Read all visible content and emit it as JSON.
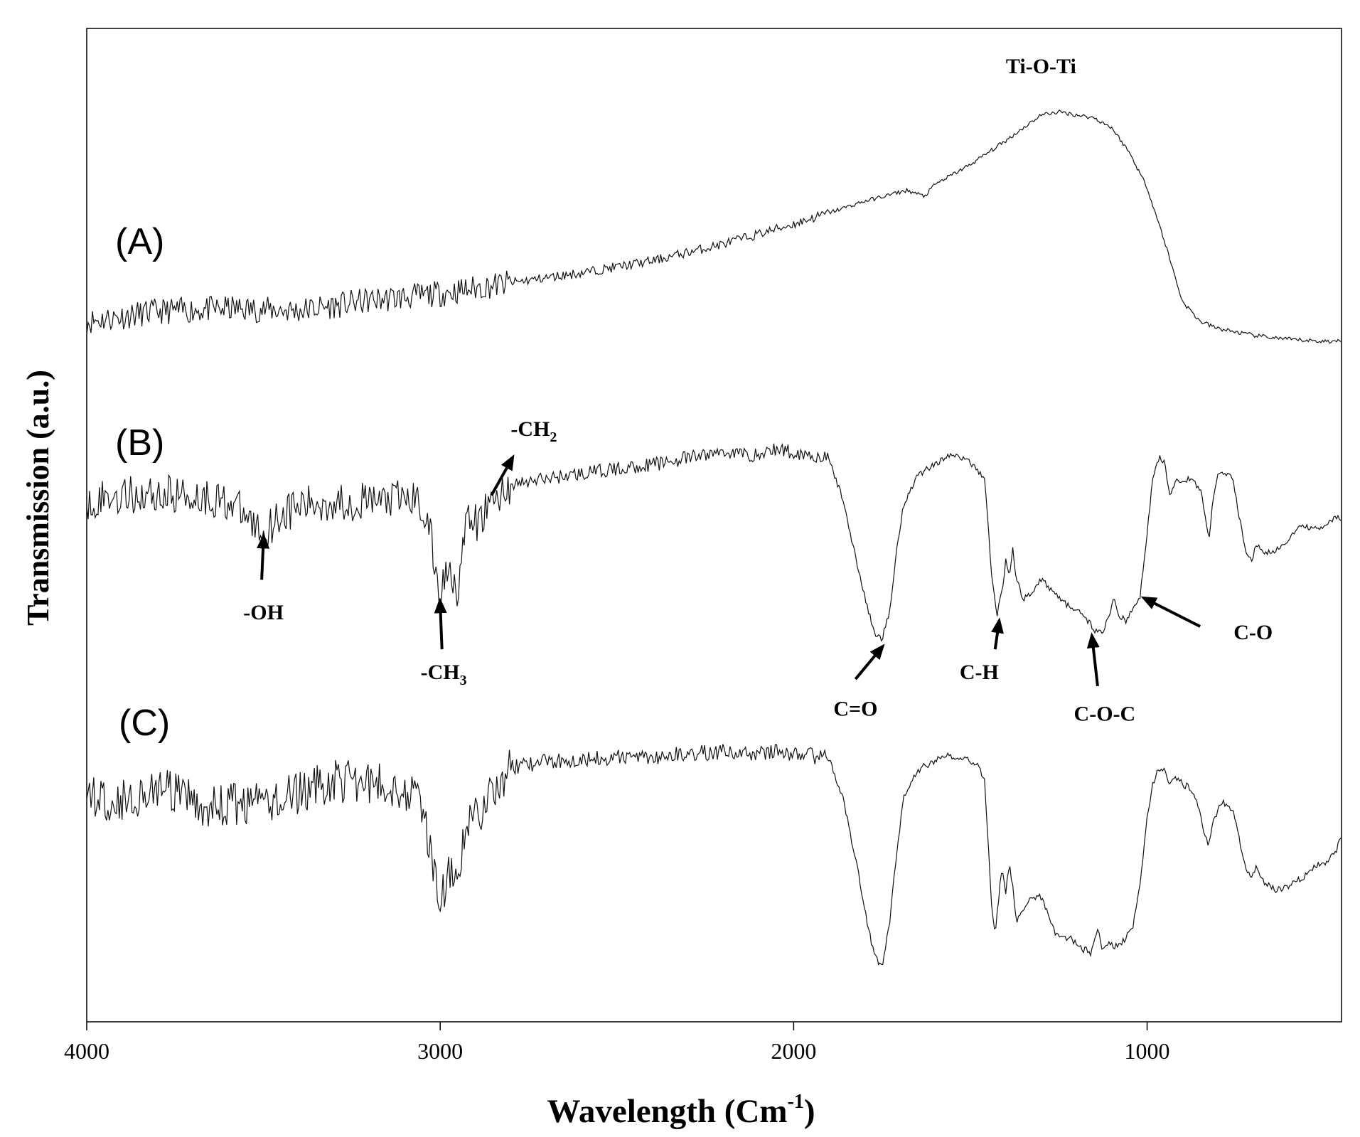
{
  "chart_data": {
    "type": "line",
    "title": "",
    "xlabel": "Wavelength (Cm",
    "xlabel_sup": "-1",
    "xlabel_close": ")",
    "ylabel": "Transmission (a.u.)",
    "xlim": [
      4000,
      450
    ],
    "x_reversed": true,
    "ylim": [
      0,
      100
    ],
    "y_ticks_shown": false,
    "grid": false,
    "x_ticks": [
      {
        "value": 4000,
        "label": "4000"
      },
      {
        "value": 3000,
        "label": "3000"
      },
      {
        "value": 2000,
        "label": "2000"
      },
      {
        "value": 1000,
        "label": "1000"
      }
    ],
    "series": [
      {
        "name": "(A)",
        "noise": 0.6,
        "points": [
          [
            4000,
            70.5
          ],
          [
            3800,
            71.5
          ],
          [
            3600,
            71.8
          ],
          [
            3400,
            71.6
          ],
          [
            3200,
            72.6
          ],
          [
            3000,
            73.3
          ],
          [
            2800,
            74.4
          ],
          [
            2600,
            75.4
          ],
          [
            2400,
            76.6
          ],
          [
            2200,
            78.3
          ],
          [
            2000,
            80.3
          ],
          [
            1800,
            82.6
          ],
          [
            1680,
            83.7
          ],
          [
            1630,
            83.1
          ],
          [
            1600,
            84.3
          ],
          [
            1500,
            86.3
          ],
          [
            1400,
            88.7
          ],
          [
            1300,
            91.3
          ],
          [
            1250,
            91.6
          ],
          [
            1150,
            91.0
          ],
          [
            1100,
            90.0
          ],
          [
            1050,
            87.5
          ],
          [
            1000,
            84.0
          ],
          [
            950,
            78.5
          ],
          [
            900,
            72.5
          ],
          [
            850,
            70.5
          ],
          [
            800,
            69.8
          ],
          [
            700,
            69.1
          ],
          [
            600,
            68.7
          ],
          [
            500,
            68.5
          ],
          [
            450,
            68.5
          ]
        ]
      },
      {
        "name": "(B)",
        "noise": 0.9,
        "points": [
          [
            4000,
            52.5
          ],
          [
            3900,
            53.0
          ],
          [
            3800,
            53.1
          ],
          [
            3700,
            53.0
          ],
          [
            3600,
            52.4
          ],
          [
            3550,
            50.9
          ],
          [
            3500,
            49.1
          ],
          [
            3460,
            50.9
          ],
          [
            3400,
            51.9
          ],
          [
            3300,
            52.3
          ],
          [
            3200,
            52.4
          ],
          [
            3100,
            52.6
          ],
          [
            3060,
            52.5
          ],
          [
            3030,
            49.5
          ],
          [
            3010,
            44.5
          ],
          [
            3000,
            43.0
          ],
          [
            2990,
            44.5
          ],
          [
            2975,
            46.0
          ],
          [
            2960,
            44.5
          ],
          [
            2950,
            43.5
          ],
          [
            2935,
            48.0
          ],
          [
            2920,
            50.5
          ],
          [
            2890,
            50.0
          ],
          [
            2870,
            51.8
          ],
          [
            2800,
            54.0
          ],
          [
            2700,
            54.7
          ],
          [
            2600,
            55.2
          ],
          [
            2400,
            56.1
          ],
          [
            2200,
            57.4
          ],
          [
            2100,
            57.0
          ],
          [
            2050,
            57.7
          ],
          [
            2000,
            57.3
          ],
          [
            1950,
            57.1
          ],
          [
            1900,
            56.6
          ],
          [
            1860,
            52.5
          ],
          [
            1820,
            46.0
          ],
          [
            1790,
            41.5
          ],
          [
            1770,
            39.0
          ],
          [
            1750,
            38.6
          ],
          [
            1730,
            41.0
          ],
          [
            1710,
            47.0
          ],
          [
            1690,
            52.0
          ],
          [
            1650,
            55.0
          ],
          [
            1600,
            56.2
          ],
          [
            1560,
            57.0
          ],
          [
            1520,
            56.8
          ],
          [
            1480,
            55.6
          ],
          [
            1460,
            54.7
          ],
          [
            1450,
            50.0
          ],
          [
            1440,
            45.0
          ],
          [
            1425,
            40.9
          ],
          [
            1410,
            43.5
          ],
          [
            1400,
            46.5
          ],
          [
            1390,
            45.0
          ],
          [
            1380,
            47.5
          ],
          [
            1370,
            44.5
          ],
          [
            1350,
            42.5
          ],
          [
            1330,
            43.2
          ],
          [
            1300,
            44.5
          ],
          [
            1250,
            42.8
          ],
          [
            1210,
            41.4
          ],
          [
            1180,
            41.0
          ],
          [
            1150,
            39.5
          ],
          [
            1130,
            39.1
          ],
          [
            1110,
            40.5
          ],
          [
            1095,
            42.5
          ],
          [
            1080,
            41.0
          ],
          [
            1060,
            40.3
          ],
          [
            1040,
            41.5
          ],
          [
            1020,
            42.9
          ],
          [
            1000,
            49.0
          ],
          [
            985,
            54.5
          ],
          [
            965,
            57.0
          ],
          [
            950,
            56.1
          ],
          [
            935,
            53.0
          ],
          [
            920,
            54.5
          ],
          [
            880,
            54.6
          ],
          [
            850,
            53.7
          ],
          [
            835,
            51.0
          ],
          [
            825,
            48.5
          ],
          [
            815,
            52.0
          ],
          [
            800,
            54.9
          ],
          [
            780,
            55.3
          ],
          [
            760,
            55.0
          ],
          [
            740,
            51.0
          ],
          [
            720,
            47.0
          ],
          [
            705,
            46.5
          ],
          [
            690,
            48.0
          ],
          [
            680,
            47.6
          ],
          [
            660,
            47.2
          ],
          [
            640,
            47.2
          ],
          [
            600,
            48.6
          ],
          [
            560,
            50.0
          ],
          [
            520,
            49.5
          ],
          [
            490,
            50.0
          ],
          [
            470,
            50.9
          ],
          [
            450,
            50.5
          ]
        ]
      },
      {
        "name": "(C)",
        "noise": 1.0,
        "points": [
          [
            4000,
            22.7
          ],
          [
            3900,
            22.3
          ],
          [
            3800,
            23.5
          ],
          [
            3700,
            22.2
          ],
          [
            3650,
            21.5
          ],
          [
            3600,
            21.8
          ],
          [
            3500,
            22.0
          ],
          [
            3400,
            23.0
          ],
          [
            3300,
            24.3
          ],
          [
            3200,
            24.1
          ],
          [
            3100,
            23.4
          ],
          [
            3060,
            22.5
          ],
          [
            3030,
            18.0
          ],
          [
            3010,
            13.5
          ],
          [
            3000,
            12.3
          ],
          [
            2990,
            13.5
          ],
          [
            2975,
            15.0
          ],
          [
            2960,
            13.5
          ],
          [
            2950,
            13.0
          ],
          [
            2935,
            17.5
          ],
          [
            2920,
            20.5
          ],
          [
            2890,
            21.0
          ],
          [
            2870,
            22.5
          ],
          [
            2800,
            25.6
          ],
          [
            2700,
            26.2
          ],
          [
            2600,
            26.5
          ],
          [
            2400,
            26.7
          ],
          [
            2200,
            27.2
          ],
          [
            2100,
            26.9
          ],
          [
            2050,
            27.3
          ],
          [
            2000,
            26.9
          ],
          [
            1950,
            26.8
          ],
          [
            1900,
            26.5
          ],
          [
            1860,
            22.5
          ],
          [
            1820,
            15.5
          ],
          [
            1790,
            9.5
          ],
          [
            1770,
            6.5
          ],
          [
            1750,
            5.7
          ],
          [
            1730,
            9.5
          ],
          [
            1710,
            16.5
          ],
          [
            1690,
            22.5
          ],
          [
            1650,
            25.3
          ],
          [
            1600,
            26.3
          ],
          [
            1560,
            26.8
          ],
          [
            1520,
            26.6
          ],
          [
            1480,
            25.8
          ],
          [
            1460,
            24.5
          ],
          [
            1450,
            18.0
          ],
          [
            1440,
            12.0
          ],
          [
            1430,
            8.6
          ],
          [
            1420,
            12.5
          ],
          [
            1410,
            15.5
          ],
          [
            1400,
            13.0
          ],
          [
            1390,
            16.0
          ],
          [
            1380,
            13.5
          ],
          [
            1370,
            10.2
          ],
          [
            1350,
            11.5
          ],
          [
            1330,
            12.5
          ],
          [
            1300,
            12.6
          ],
          [
            1280,
            11.0
          ],
          [
            1260,
            8.7
          ],
          [
            1240,
            8.3
          ],
          [
            1220,
            8.6
          ],
          [
            1200,
            7.8
          ],
          [
            1180,
            7.3
          ],
          [
            1160,
            7.0
          ],
          [
            1150,
            8.0
          ],
          [
            1140,
            9.5
          ],
          [
            1130,
            7.5
          ],
          [
            1110,
            7.8
          ],
          [
            1090,
            7.5
          ],
          [
            1070,
            8.0
          ],
          [
            1040,
            9.5
          ],
          [
            1020,
            14.0
          ],
          [
            1000,
            20.5
          ],
          [
            985,
            24.0
          ],
          [
            965,
            25.5
          ],
          [
            950,
            25.3
          ],
          [
            935,
            24.0
          ],
          [
            920,
            24.5
          ],
          [
            880,
            23.5
          ],
          [
            850,
            21.3
          ],
          [
            835,
            18.5
          ],
          [
            825,
            17.7
          ],
          [
            815,
            20.0
          ],
          [
            800,
            21.3
          ],
          [
            785,
            22.1
          ],
          [
            760,
            21.5
          ],
          [
            740,
            18.5
          ],
          [
            720,
            15.5
          ],
          [
            705,
            14.6
          ],
          [
            690,
            15.5
          ],
          [
            680,
            14.3
          ],
          [
            660,
            13.8
          ],
          [
            640,
            13.3
          ],
          [
            600,
            13.7
          ],
          [
            560,
            14.5
          ],
          [
            520,
            15.7
          ],
          [
            490,
            16.2
          ],
          [
            465,
            17.0
          ],
          [
            450,
            19.0
          ]
        ]
      }
    ],
    "series_labels": [
      {
        "series": "(A)",
        "text": "(A)"
      },
      {
        "series": "(B)",
        "text": "(B)"
      },
      {
        "series": "(C)",
        "text": "(C)"
      }
    ],
    "annotations": [
      {
        "text": "Ti-O-Ti",
        "x": 1300,
        "y": 95.5,
        "arrow": false
      },
      {
        "text": "-OH",
        "sub": "",
        "x": 3500,
        "y": 40.5,
        "arrow": true,
        "arrow_from": [
          3505,
          44.5
        ],
        "arrow_to": [
          3500,
          48.5
        ]
      },
      {
        "text": "-CH",
        "sub": "3",
        "x": 2990,
        "y": 34.5,
        "arrow": true,
        "arrow_from": [
          2995,
          37.5
        ],
        "arrow_to": [
          3000,
          42.0
        ]
      },
      {
        "text": "-CH",
        "sub": "2",
        "x": 2735,
        "y": 59.0,
        "arrow": true,
        "arrow_from": [
          2855,
          53.0
        ],
        "arrow_to": [
          2800,
          56.5
        ]
      },
      {
        "text": "C=O",
        "x": 1825,
        "y": 30.8,
        "arrow": true,
        "arrow_from": [
          1825,
          34.5
        ],
        "arrow_to": [
          1755,
          37.5
        ]
      },
      {
        "text": "C-H",
        "x": 1475,
        "y": 34.5,
        "arrow": true,
        "arrow_from": [
          1430,
          37.5
        ],
        "arrow_to": [
          1420,
          40.0
        ]
      },
      {
        "text": "C-O-C",
        "x": 1120,
        "y": 30.3,
        "arrow": true,
        "arrow_from": [
          1140,
          33.8
        ],
        "arrow_to": [
          1155,
          38.5
        ]
      },
      {
        "text": "C-O",
        "x": 700,
        "y": 38.5,
        "arrow": true,
        "arrow_from": [
          850,
          39.8
        ],
        "arrow_to": [
          1000,
          42.5
        ]
      }
    ]
  }
}
